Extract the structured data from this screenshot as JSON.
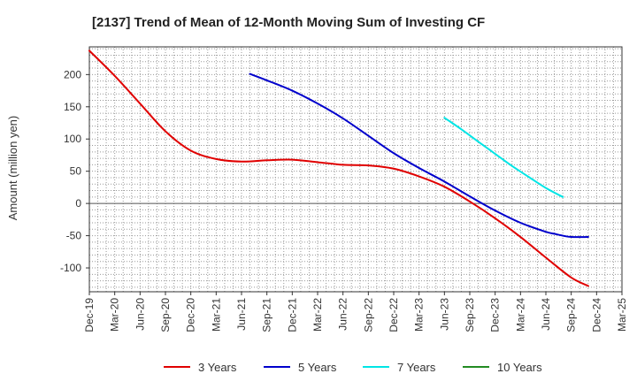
{
  "chart_data": {
    "type": "line",
    "title": "[2137]  Trend of Mean of 12-Month Moving Sum of Investing CF",
    "xlabel": "",
    "ylabel": "Amount (million yen)",
    "ylim": [
      -137,
      243
    ],
    "y_ticks": [
      200,
      150,
      100,
      50,
      0,
      -50,
      -100
    ],
    "y_tick_labels": [
      "200",
      "150",
      "100",
      "50",
      "0",
      "-50",
      "-100"
    ],
    "categories": [
      "Dec-19",
      "Mar-20",
      "Jun-20",
      "Sep-20",
      "Dec-20",
      "Mar-21",
      "Jun-21",
      "Sep-21",
      "Dec-21",
      "Mar-22",
      "Jun-22",
      "Sep-22",
      "Dec-22",
      "Mar-23",
      "Jun-23",
      "Sep-23",
      "Dec-23",
      "Mar-24",
      "Jun-24",
      "Sep-24",
      "Dec-24",
      "Mar-25"
    ],
    "grid": true,
    "legend_position": "bottom",
    "series": [
      {
        "name": "3 Years",
        "color": "#e00000",
        "points": [
          [
            0,
            237
          ],
          [
            1,
            198
          ],
          [
            2,
            155
          ],
          [
            3,
            112
          ],
          [
            4,
            82
          ],
          [
            5,
            69
          ],
          [
            6,
            65
          ],
          [
            7,
            67
          ],
          [
            8,
            68
          ],
          [
            9,
            64
          ],
          [
            10,
            60
          ],
          [
            11,
            59
          ],
          [
            12,
            54
          ],
          [
            13,
            42
          ],
          [
            14,
            26
          ],
          [
            15,
            3
          ],
          [
            16,
            -23
          ],
          [
            17,
            -52
          ],
          [
            18,
            -84
          ],
          [
            19,
            -115
          ],
          [
            19.67,
            -128
          ]
        ]
      },
      {
        "name": "5 Years",
        "color": "#0000cc",
        "points": [
          [
            6.33,
            201
          ],
          [
            7,
            191
          ],
          [
            8,
            175
          ],
          [
            9,
            155
          ],
          [
            10,
            132
          ],
          [
            11,
            105
          ],
          [
            12,
            78
          ],
          [
            13,
            55
          ],
          [
            14,
            34
          ],
          [
            15,
            11
          ],
          [
            16,
            -11
          ],
          [
            17,
            -30
          ],
          [
            18,
            -44
          ],
          [
            18.33,
            -47
          ],
          [
            18.67,
            -50
          ],
          [
            19,
            -52
          ],
          [
            19.67,
            -52
          ]
        ]
      },
      {
        "name": "7 Years",
        "color": "#00e5e5",
        "points": [
          [
            14,
            133
          ],
          [
            14.67,
            115
          ],
          [
            15.33,
            96
          ],
          [
            16,
            77
          ],
          [
            16.67,
            58
          ],
          [
            17.33,
            41
          ],
          [
            18,
            24
          ],
          [
            18.67,
            10
          ]
        ]
      },
      {
        "name": "10 Years",
        "color": "#228b22",
        "points": []
      }
    ]
  }
}
